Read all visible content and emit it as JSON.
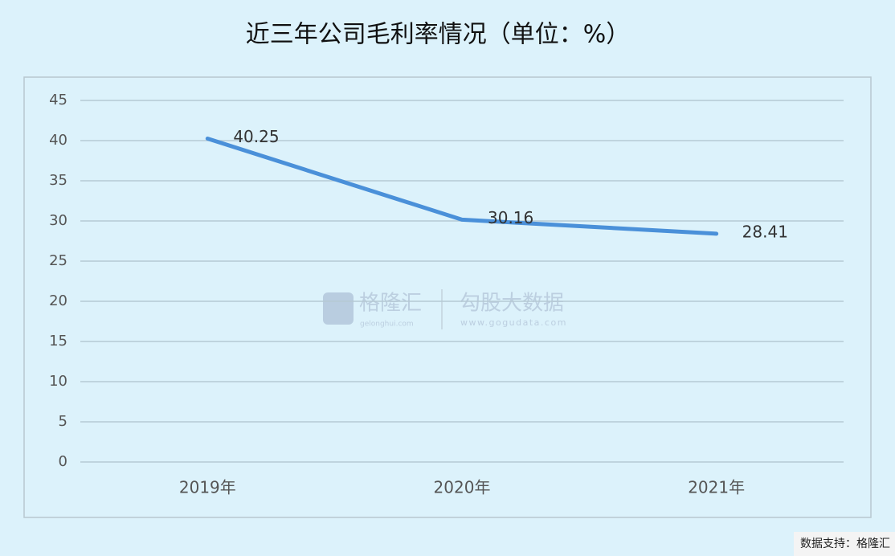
{
  "chart_data": {
    "type": "line",
    "title": "近三年公司毛利率情况（单位：%）",
    "categories": [
      "2019年",
      "2020年",
      "2021年"
    ],
    "series": [
      {
        "name": "毛利率",
        "color": "#4a90d9",
        "values": [
          40.25,
          30.16,
          28.41
        ]
      }
    ],
    "ylim": [
      0,
      45
    ],
    "yticks": [
      0,
      5,
      10,
      15,
      20,
      25,
      30,
      35,
      40,
      45
    ],
    "grid": true,
    "watermark": [
      "格隆汇",
      "gelonghui.com",
      "勾股大数据",
      "www.gogudata.com"
    ],
    "footer": "数据支持：格隆汇"
  }
}
